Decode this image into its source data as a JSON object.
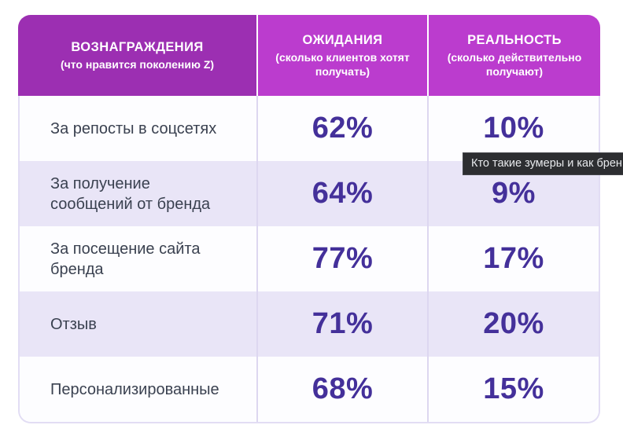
{
  "chart_data": {
    "type": "table",
    "title": "",
    "categories": [
      "За репосты в соцсетях",
      "За получение сообщений от бренда",
      "За посещение сайта бренда",
      "Отзыв",
      "Персонализированные"
    ],
    "series": [
      {
        "name": "ОЖИДАНИЯ (сколько клиентов хотят получать)",
        "values": [
          62,
          64,
          77,
          71,
          68
        ]
      },
      {
        "name": "РЕАЛЬНОСТЬ (сколько действительно получают)",
        "values": [
          10,
          9,
          17,
          20,
          15
        ]
      }
    ],
    "unit": "%",
    "legend_position": "none",
    "grid": false
  },
  "table": {
    "columns": [
      {
        "title": "ВОЗНАГРАЖДЕНИЯ",
        "subtitle": "(что нравится поколению Z)"
      },
      {
        "title": "ОЖИДАНИЯ",
        "subtitle": "(сколько клиентов хотят получать)"
      },
      {
        "title": "РЕАЛЬНОСТЬ",
        "subtitle": "(сколько действительно получают)"
      }
    ],
    "rows": [
      {
        "label": "За репосты в соцсетях",
        "expectation": "62%",
        "reality": "10%"
      },
      {
        "label": "За получение сообщений от бренда",
        "expectation": "64%",
        "reality": "9%"
      },
      {
        "label": "За посещение сайта бренда",
        "expectation": "77%",
        "reality": "17%"
      },
      {
        "label": "Отзыв",
        "expectation": "71%",
        "reality": "20%"
      },
      {
        "label": "Персонализированные",
        "expectation": "68%",
        "reality": "15%"
      }
    ]
  },
  "tooltip": {
    "text": "Кто такие зумеры и как брен"
  },
  "colors": {
    "header1_bg": "#9c2fb2",
    "header23_bg": "#bb3cce",
    "row_alt_bg": "#e9e5f7",
    "value_color": "#44309a",
    "label_color": "#3a4150",
    "tooltip_bg": "#2d2e31"
  }
}
